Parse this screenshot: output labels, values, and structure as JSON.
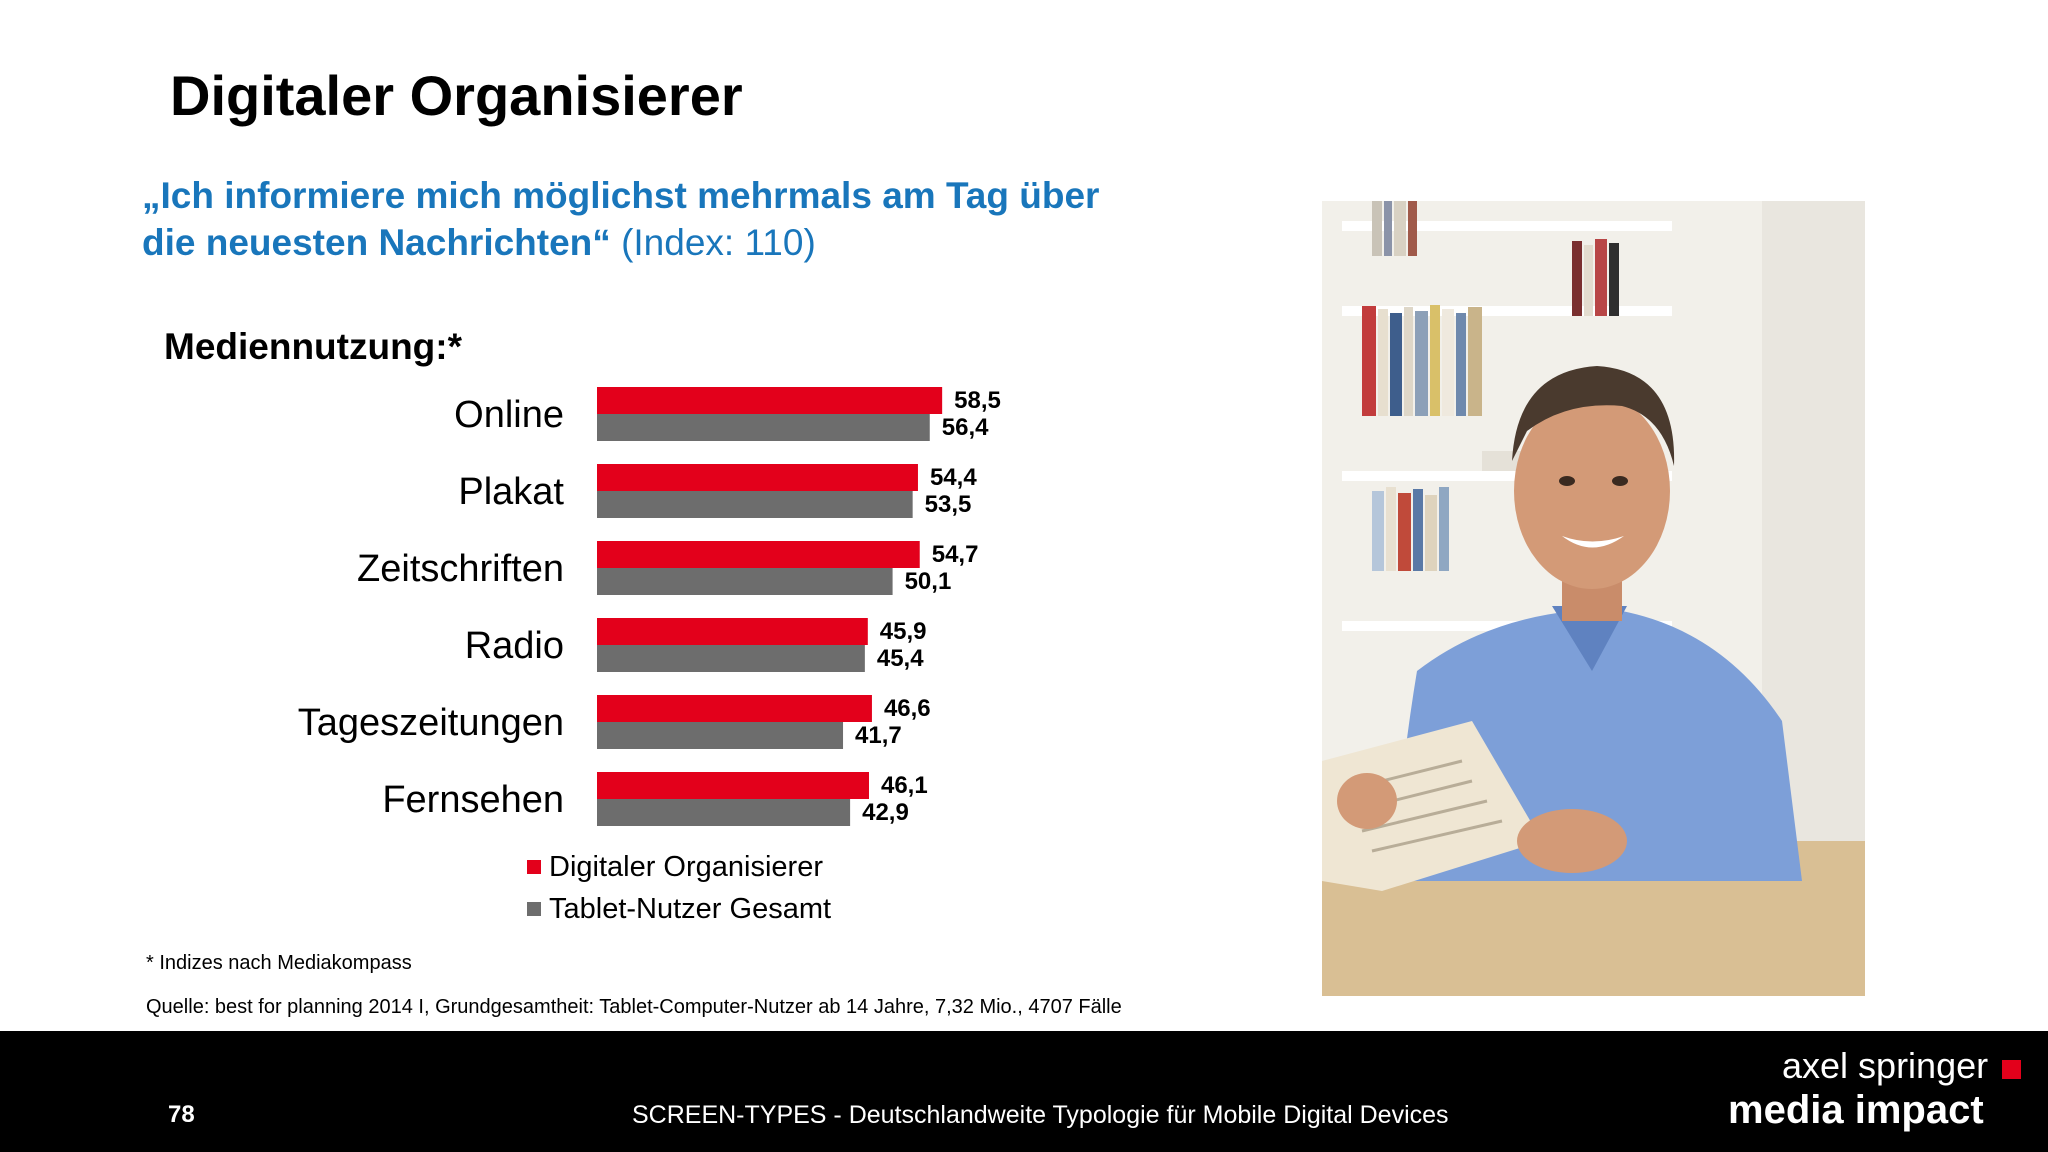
{
  "title": "Digitaler Organisierer",
  "quote": {
    "line1": "„Ich informiere mich möglichst mehrmals am Tag über",
    "line2_bold": "die neuesten Nachrichten“",
    "line2_rest": " (Index: 110)"
  },
  "section_label": "Mediennutzung:*",
  "chart_data": {
    "type": "bar",
    "orientation": "horizontal",
    "categories": [
      "Online",
      "Plakat",
      "Zeitschriften",
      "Radio",
      "Tageszeitungen",
      "Fernsehen"
    ],
    "series": [
      {
        "name": "Digitaler Organisierer",
        "color": "#e3001b",
        "values": [
          58.5,
          54.4,
          54.7,
          45.9,
          46.6,
          46.1
        ],
        "labels": [
          "58,5",
          "54,4",
          "54,7",
          "45,9",
          "46,6",
          "46,1"
        ]
      },
      {
        "name": "Tablet-Nutzer Gesamt",
        "color": "#6d6d6d",
        "values": [
          56.4,
          53.5,
          50.1,
          45.4,
          41.7,
          42.9
        ],
        "labels": [
          "56,4",
          "53,5",
          "50,1",
          "45,4",
          "41,7",
          "42,9"
        ]
      }
    ],
    "legend": "bottom"
  },
  "footnote": "* Indizes nach Mediakompass",
  "source": "Quelle: best for planning 2014 I, Grundgesamtheit: Tablet-Computer-Nutzer ab 14 Jahre, 7,32 Mio., 4707 Fälle",
  "footer": {
    "page_number": "78",
    "text": "SCREEN-TYPES - Deutschlandweite Typologie für Mobile Digital Devices",
    "logo_line1": "axel springer",
    "logo_line2": "media impact"
  },
  "photo": {
    "icon": "man-with-newspaper-photo"
  }
}
